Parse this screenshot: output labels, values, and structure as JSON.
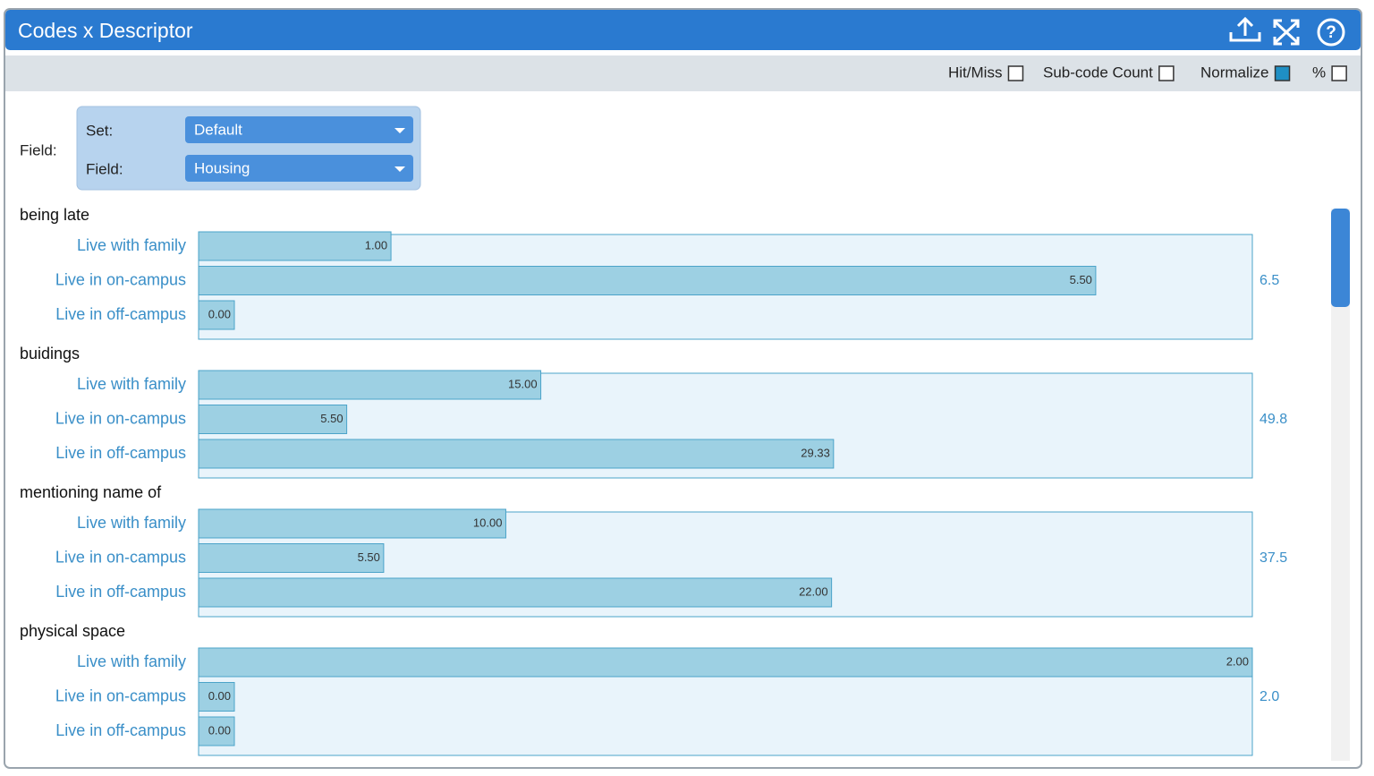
{
  "header": {
    "title": "Codes x Descriptor"
  },
  "toolbar": {
    "options": [
      {
        "label": "Hit/Miss",
        "checked": false
      },
      {
        "label": "Sub-code Count",
        "checked": false
      },
      {
        "label": "Normalize",
        "checked": true
      },
      {
        "label": "%",
        "checked": false
      }
    ]
  },
  "field_selector": {
    "label": "Field:",
    "set_label": "Set:",
    "set_value": "Default",
    "field_label": "Field:",
    "field_value": "Housing"
  },
  "chart_data": {
    "type": "bar",
    "bar_color": "#9dd0e3",
    "group_fill": "#e9f4fb",
    "edge_color": "#4ba3c9",
    "groups": [
      {
        "name": "being late",
        "categories": [
          "Live with family",
          "Live in on-campus",
          "Live in off-campus"
        ],
        "values": [
          1,
          5.5,
          0
        ],
        "value_labels": [
          "1.00",
          "5.50",
          "0.00"
        ],
        "total": "6.5"
      },
      {
        "name": "buidings",
        "categories": [
          "Live with family",
          "Live in on-campus",
          "Live in off-campus"
        ],
        "values": [
          15,
          5.5,
          29.33
        ],
        "value_labels": [
          "15.00",
          "5.50",
          "29.33"
        ],
        "total": "49.8"
      },
      {
        "name": "mentioning name of",
        "categories": [
          "Live with family",
          "Live in on-campus",
          "Live in off-campus"
        ],
        "values": [
          10,
          5.5,
          22
        ],
        "value_labels": [
          "10.00",
          "5.50",
          "22.00"
        ],
        "total": "37.5"
      },
      {
        "name": "physical space",
        "categories": [
          "Live with family",
          "Live in on-campus",
          "Live in off-campus"
        ],
        "values": [
          2,
          0,
          0
        ],
        "value_labels": [
          "2.00",
          "0.00",
          "0.00"
        ],
        "total": "2.0"
      }
    ]
  }
}
